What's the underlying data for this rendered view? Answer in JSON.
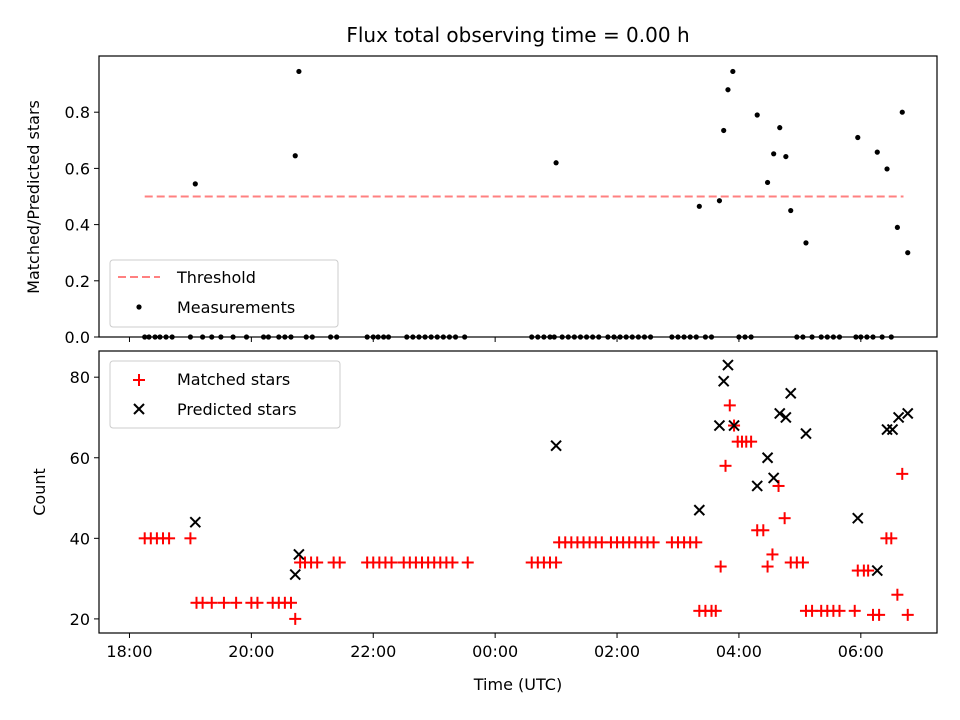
{
  "chart_data": [
    {
      "type": "scatter",
      "title": "Flux total observing time = 0.00 h",
      "ylabel": "Matched/Predicted stars",
      "xlabel": "",
      "ylim": [
        0,
        1.0
      ],
      "yticks": [
        0.0,
        0.2,
        0.4,
        0.6,
        0.8
      ],
      "ytick_labels": [
        "0.0",
        "0.2",
        "0.4",
        "0.6",
        "0.8"
      ],
      "xlim_hours": [
        17.5,
        31.25
      ],
      "xticks_hours": [
        18,
        20,
        22,
        24,
        26,
        28,
        30
      ],
      "legend": {
        "position": "lower-left",
        "entries": [
          "Threshold",
          "Measurements"
        ]
      },
      "threshold": {
        "name": "Threshold",
        "value": 0.5,
        "x_start": 18.25,
        "x_end": 30.7,
        "color": "#ff8080",
        "style": "dashed"
      },
      "series": [
        {
          "name": "Measurements",
          "color": "#000000",
          "marker": "dot",
          "points": [
            [
              18.25,
              0
            ],
            [
              18.32,
              0
            ],
            [
              18.42,
              0
            ],
            [
              18.5,
              0
            ],
            [
              18.6,
              0
            ],
            [
              18.7,
              0
            ],
            [
              19.0,
              0
            ],
            [
              19.08,
              0.545
            ],
            [
              19.2,
              0
            ],
            [
              19.35,
              0
            ],
            [
              19.5,
              0
            ],
            [
              19.7,
              0
            ],
            [
              19.92,
              0
            ],
            [
              20.2,
              0
            ],
            [
              20.28,
              0
            ],
            [
              20.45,
              0
            ],
            [
              20.55,
              0
            ],
            [
              20.65,
              0
            ],
            [
              20.72,
              0.645
            ],
            [
              20.78,
              0.945
            ],
            [
              20.9,
              0
            ],
            [
              21.0,
              0
            ],
            [
              21.3,
              0
            ],
            [
              21.4,
              0
            ],
            [
              21.9,
              0
            ],
            [
              22.0,
              0
            ],
            [
              22.08,
              0
            ],
            [
              22.17,
              0
            ],
            [
              22.25,
              0
            ],
            [
              22.55,
              0
            ],
            [
              22.65,
              0
            ],
            [
              22.75,
              0
            ],
            [
              22.85,
              0
            ],
            [
              22.95,
              0
            ],
            [
              23.05,
              0
            ],
            [
              23.15,
              0
            ],
            [
              23.25,
              0
            ],
            [
              23.35,
              0
            ],
            [
              23.5,
              0
            ],
            [
              24.6,
              0
            ],
            [
              24.7,
              0
            ],
            [
              24.8,
              0
            ],
            [
              24.9,
              0
            ],
            [
              24.97,
              0
            ],
            [
              25.0,
              0.62
            ],
            [
              25.1,
              0
            ],
            [
              25.2,
              0
            ],
            [
              25.3,
              0
            ],
            [
              25.4,
              0
            ],
            [
              25.5,
              0
            ],
            [
              25.6,
              0
            ],
            [
              25.7,
              0
            ],
            [
              25.85,
              0
            ],
            [
              25.95,
              0
            ],
            [
              26.05,
              0
            ],
            [
              26.15,
              0
            ],
            [
              26.25,
              0
            ],
            [
              26.35,
              0
            ],
            [
              26.45,
              0
            ],
            [
              26.55,
              0
            ],
            [
              26.9,
              0
            ],
            [
              27.0,
              0
            ],
            [
              27.1,
              0
            ],
            [
              27.2,
              0
            ],
            [
              27.3,
              0
            ],
            [
              27.35,
              0.465
            ],
            [
              27.45,
              0
            ],
            [
              27.55,
              0
            ],
            [
              27.68,
              0.485
            ],
            [
              27.75,
              0.735
            ],
            [
              27.82,
              0.88
            ],
            [
              27.9,
              0.945
            ],
            [
              28.0,
              0
            ],
            [
              28.1,
              0
            ],
            [
              28.2,
              0
            ],
            [
              28.3,
              0.79
            ],
            [
              28.47,
              0.55
            ],
            [
              28.57,
              0.652
            ],
            [
              28.67,
              0.745
            ],
            [
              28.77,
              0.642
            ],
            [
              28.85,
              0.45
            ],
            [
              28.95,
              0
            ],
            [
              29.05,
              0
            ],
            [
              29.1,
              0.335
            ],
            [
              29.2,
              0
            ],
            [
              29.35,
              0
            ],
            [
              29.45,
              0
            ],
            [
              29.55,
              0
            ],
            [
              29.65,
              0
            ],
            [
              29.92,
              0
            ],
            [
              29.95,
              0.71
            ],
            [
              30.0,
              0
            ],
            [
              30.1,
              0
            ],
            [
              30.2,
              0
            ],
            [
              30.27,
              0.658
            ],
            [
              30.35,
              0
            ],
            [
              30.43,
              0.598
            ],
            [
              30.5,
              0
            ],
            [
              30.6,
              0.39
            ],
            [
              30.68,
              0.8
            ],
            [
              30.77,
              0.3
            ]
          ]
        }
      ]
    },
    {
      "type": "scatter",
      "title": "",
      "ylabel": "Count",
      "xlabel": "Time (UTC)",
      "ylim": [
        16.5,
        86.5
      ],
      "yticks": [
        20,
        40,
        60,
        80
      ],
      "ytick_labels": [
        "20",
        "40",
        "60",
        "80"
      ],
      "xlim_hours": [
        17.5,
        31.25
      ],
      "xticks_hours": [
        18,
        20,
        22,
        24,
        26,
        28,
        30
      ],
      "xtick_labels": [
        "18:00",
        "20:00",
        "22:00",
        "00:00",
        "02:00",
        "04:00",
        "06:00"
      ],
      "legend": {
        "position": "upper-left",
        "entries": [
          "Matched stars",
          "Predicted stars"
        ]
      },
      "series": [
        {
          "name": "Matched stars",
          "color": "#ff0000",
          "marker": "plus",
          "points": [
            [
              18.25,
              40
            ],
            [
              18.35,
              40
            ],
            [
              18.45,
              40
            ],
            [
              18.55,
              40
            ],
            [
              18.65,
              40
            ],
            [
              19.0,
              40
            ],
            [
              19.1,
              24
            ],
            [
              19.2,
              24
            ],
            [
              19.35,
              24
            ],
            [
              19.55,
              24
            ],
            [
              19.75,
              24
            ],
            [
              20.0,
              24
            ],
            [
              20.1,
              24
            ],
            [
              20.35,
              24
            ],
            [
              20.45,
              24
            ],
            [
              20.55,
              24
            ],
            [
              20.65,
              24
            ],
            [
              20.72,
              20
            ],
            [
              20.8,
              34
            ],
            [
              20.88,
              34
            ],
            [
              20.98,
              34
            ],
            [
              21.08,
              34
            ],
            [
              21.35,
              34
            ],
            [
              21.45,
              34
            ],
            [
              21.9,
              34
            ],
            [
              22.0,
              34
            ],
            [
              22.1,
              34
            ],
            [
              22.2,
              34
            ],
            [
              22.3,
              34
            ],
            [
              22.5,
              34
            ],
            [
              22.6,
              34
            ],
            [
              22.7,
              34
            ],
            [
              22.8,
              34
            ],
            [
              22.9,
              34
            ],
            [
              23.0,
              34
            ],
            [
              23.1,
              34
            ],
            [
              23.2,
              34
            ],
            [
              23.3,
              34
            ],
            [
              23.55,
              34
            ],
            [
              24.6,
              34
            ],
            [
              24.7,
              34
            ],
            [
              24.8,
              34
            ],
            [
              24.9,
              34
            ],
            [
              25.0,
              34
            ],
            [
              25.05,
              39
            ],
            [
              25.15,
              39
            ],
            [
              25.25,
              39
            ],
            [
              25.35,
              39
            ],
            [
              25.45,
              39
            ],
            [
              25.55,
              39
            ],
            [
              25.65,
              39
            ],
            [
              25.75,
              39
            ],
            [
              25.9,
              39
            ],
            [
              26.0,
              39
            ],
            [
              26.1,
              39
            ],
            [
              26.2,
              39
            ],
            [
              26.3,
              39
            ],
            [
              26.4,
              39
            ],
            [
              26.5,
              39
            ],
            [
              26.6,
              39
            ],
            [
              26.9,
              39
            ],
            [
              27.0,
              39
            ],
            [
              27.1,
              39
            ],
            [
              27.2,
              39
            ],
            [
              27.3,
              39
            ],
            [
              27.35,
              22
            ],
            [
              27.45,
              22
            ],
            [
              27.55,
              22
            ],
            [
              27.62,
              22
            ],
            [
              27.7,
              33
            ],
            [
              27.78,
              58
            ],
            [
              27.85,
              73
            ],
            [
              27.92,
              68
            ],
            [
              27.98,
              64
            ],
            [
              28.05,
              64
            ],
            [
              28.12,
              64
            ],
            [
              28.2,
              64
            ],
            [
              28.3,
              42
            ],
            [
              28.4,
              42
            ],
            [
              28.47,
              33
            ],
            [
              28.55,
              36
            ],
            [
              28.65,
              53
            ],
            [
              28.75,
              45
            ],
            [
              28.85,
              34
            ],
            [
              28.95,
              34
            ],
            [
              29.05,
              34
            ],
            [
              29.1,
              22
            ],
            [
              29.2,
              22
            ],
            [
              29.35,
              22
            ],
            [
              29.45,
              22
            ],
            [
              29.55,
              22
            ],
            [
              29.65,
              22
            ],
            [
              29.9,
              22
            ],
            [
              29.95,
              32
            ],
            [
              30.05,
              32
            ],
            [
              30.12,
              32
            ],
            [
              30.2,
              21
            ],
            [
              30.3,
              21
            ],
            [
              30.42,
              40
            ],
            [
              30.5,
              40
            ],
            [
              30.6,
              26
            ],
            [
              30.68,
              56
            ],
            [
              30.77,
              21
            ]
          ]
        },
        {
          "name": "Predicted stars",
          "color": "#000000",
          "marker": "x",
          "points": [
            [
              19.08,
              44
            ],
            [
              20.72,
              31
            ],
            [
              20.78,
              36
            ],
            [
              25.0,
              63
            ],
            [
              27.35,
              47
            ],
            [
              27.68,
              68
            ],
            [
              27.75,
              79
            ],
            [
              27.82,
              83
            ],
            [
              27.92,
              68
            ],
            [
              28.3,
              53
            ],
            [
              28.47,
              60
            ],
            [
              28.57,
              55
            ],
            [
              28.67,
              71
            ],
            [
              28.77,
              70
            ],
            [
              28.85,
              76
            ],
            [
              29.1,
              66
            ],
            [
              29.95,
              45
            ],
            [
              30.27,
              32
            ],
            [
              30.43,
              67
            ],
            [
              30.52,
              67
            ],
            [
              30.62,
              70
            ],
            [
              30.77,
              71
            ]
          ]
        }
      ]
    }
  ]
}
